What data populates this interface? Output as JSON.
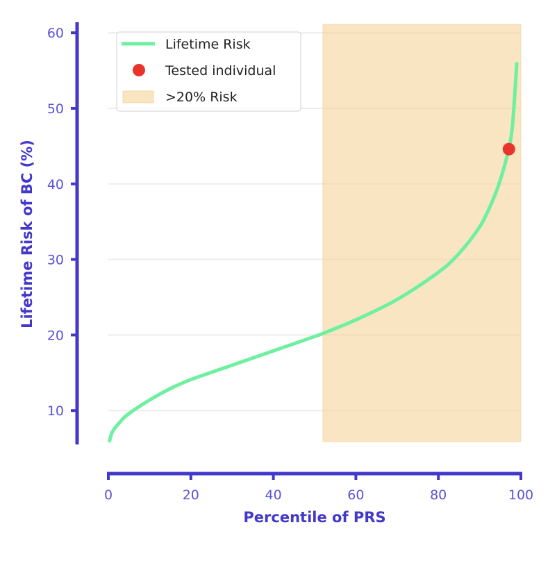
{
  "chart_data": {
    "type": "line",
    "title": "",
    "xlabel": "Percentile of PRS",
    "ylabel": "Lifetime Risk of BC (%)",
    "xlim": [
      0,
      100
    ],
    "ylim": [
      6,
      61
    ],
    "xticks": [
      0,
      20,
      40,
      60,
      80,
      100
    ],
    "yticks": [
      10,
      20,
      30,
      40,
      50,
      60
    ],
    "grid": "horizontal",
    "legend_placement": "top-left",
    "series": [
      {
        "name": "Lifetime Risk",
        "color": "#6ef0a0",
        "x": [
          0.3,
          1,
          3,
          5,
          10,
          15,
          20,
          30,
          40,
          50,
          52,
          60,
          70,
          80,
          85,
          90,
          93,
          95,
          97,
          98,
          99
        ],
        "y": [
          6.0,
          7.2,
          8.6,
          9.6,
          11.4,
          12.9,
          14.1,
          16.0,
          17.9,
          19.8,
          20.2,
          22.0,
          24.7,
          28.3,
          30.8,
          34.3,
          37.6,
          40.5,
          44.5,
          48.0,
          55.9
        ]
      }
    ],
    "points": [
      {
        "name": "Tested individual",
        "x": 97.1,
        "y": 44.6,
        "color": "#e8342a"
      }
    ],
    "regions": [
      {
        "name": ">20% Risk",
        "x_start": 52,
        "x_end": 100,
        "color": "#f5d49a"
      }
    ],
    "colors": {
      "axis": "#4338ca",
      "tick_label": "#5b52d6"
    }
  }
}
